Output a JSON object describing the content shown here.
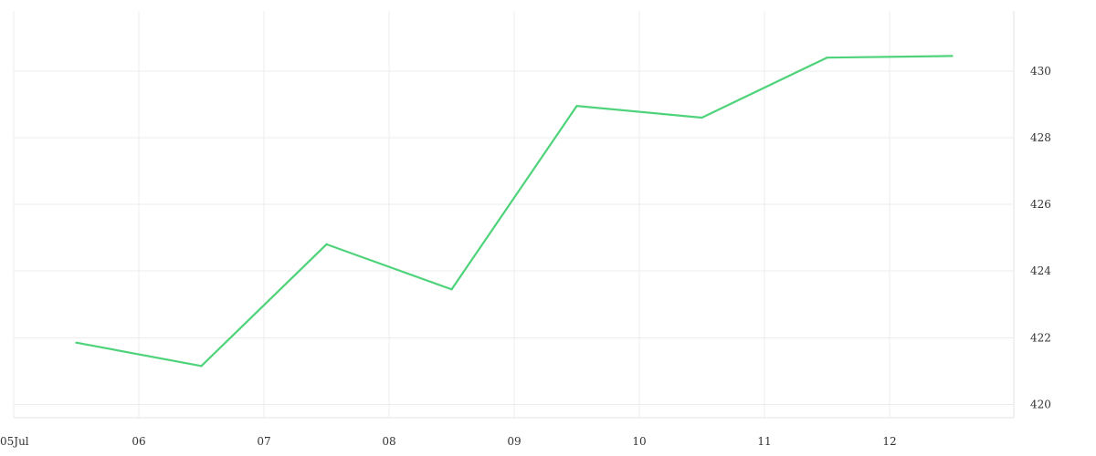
{
  "chart_data": {
    "type": "line",
    "title": "",
    "xlabel": "",
    "ylabel": "",
    "grid": true,
    "x_ticks": [
      "05Jul",
      "06",
      "07",
      "08",
      "09",
      "10",
      "11",
      "12"
    ],
    "y_ticks": [
      "420",
      "422",
      "424",
      "426",
      "428",
      "430"
    ],
    "xlim": [
      "2024-07-05",
      "2024-07-13"
    ],
    "ylim": [
      419.6,
      431.8
    ],
    "y_axis_side": "right",
    "series": [
      {
        "color": "#4fd37a",
        "points": [
          {
            "x": "2024-07-05T12:00",
            "y": 421.85
          },
          {
            "x": "2024-07-06T12:00",
            "y": 421.15
          },
          {
            "x": "2024-07-07T12:00",
            "y": 424.8
          },
          {
            "x": "2024-07-08T12:00",
            "y": 423.45
          },
          {
            "x": "2024-07-09T12:00",
            "y": 428.95
          },
          {
            "x": "2024-07-10T12:00",
            "y": 428.6
          },
          {
            "x": "2024-07-11T12:00",
            "y": 430.4
          },
          {
            "x": "2024-07-12T12:00",
            "y": 430.45
          }
        ]
      }
    ]
  }
}
